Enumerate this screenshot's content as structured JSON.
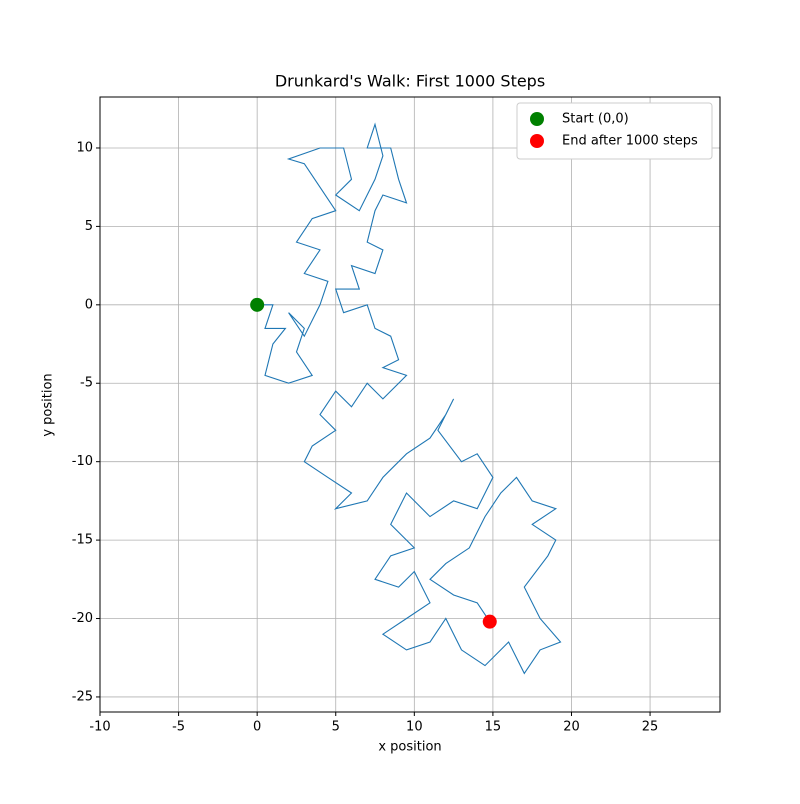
{
  "chart_data": {
    "type": "line",
    "title": "Drunkard's Walk: First 1000 Steps",
    "x_label": "x position",
    "y_label": "y position",
    "xlim": [
      -10,
      29.45
    ],
    "ylim": [
      -25.96,
      13.25
    ],
    "xticks": [
      -10,
      -5,
      0,
      5,
      10,
      15,
      20,
      25
    ],
    "yticks": [
      -25,
      -20,
      -15,
      -10,
      -5,
      0,
      5,
      10
    ],
    "grid": true,
    "legend_position": "upper right",
    "series": [
      {
        "color": "#1f77b4",
        "x": [
          0,
          1,
          0.5,
          1.8,
          1,
          0.5,
          2,
          3.5,
          2.5,
          3,
          2,
          3,
          4,
          4.5,
          3,
          4,
          2.5,
          3.5,
          5,
          4,
          3,
          2,
          4,
          5.5,
          6,
          5,
          6.5,
          7.5,
          8,
          7.5,
          7,
          8.5,
          9,
          9.5,
          8,
          7.5,
          7,
          8,
          7.5,
          6,
          6.5,
          5,
          5.5,
          7,
          7.5,
          8.5,
          9,
          8,
          9.5,
          8,
          7,
          6,
          5,
          4,
          5,
          3.5,
          3,
          4.5,
          6,
          5,
          7,
          8,
          9.5,
          11,
          12,
          12.5,
          11.5,
          13,
          14,
          15,
          14,
          12.5,
          11,
          9.5,
          8.5,
          10,
          8.5,
          7.5,
          9,
          10,
          11,
          9.5,
          8,
          9.5,
          11,
          12,
          13,
          14.5,
          16,
          17,
          18,
          19.3,
          18,
          17,
          18.5,
          19,
          17.5,
          19,
          17.5,
          16.5,
          15.5,
          14.5,
          13.5,
          12,
          11,
          12.5,
          14,
          14.8
        ],
        "y": [
          0,
          0,
          -1.5,
          -1.5,
          -2.5,
          -4.5,
          -5,
          -4.5,
          -3,
          -1.5,
          -0.5,
          -2,
          0,
          1.5,
          2,
          3.5,
          4,
          5.5,
          6,
          7.5,
          9,
          9.3,
          10,
          10,
          8,
          7,
          6,
          8,
          9.5,
          11.5,
          10,
          10,
          8,
          6.5,
          7,
          6,
          4,
          3.5,
          2,
          2.5,
          1,
          1,
          -0.5,
          0,
          -1.5,
          -2,
          -3.5,
          -4,
          -4.5,
          -6,
          -5,
          -6.5,
          -5.5,
          -7,
          -8,
          -9,
          -10,
          -11,
          -12,
          -13,
          -12.5,
          -11,
          -9.5,
          -8.5,
          -7,
          -6,
          -8,
          -10,
          -9.5,
          -11,
          -13,
          -12.5,
          -13.5,
          -12,
          -14,
          -15.5,
          -16,
          -17.5,
          -18,
          -17,
          -19,
          -20,
          -21,
          -22,
          -21.5,
          -20,
          -22,
          -23,
          -21.5,
          -23.5,
          -22,
          -21.5,
          -20,
          -18,
          -16,
          -15,
          -14,
          -13,
          -12.5,
          -11,
          -12,
          -13.5,
          -15.5,
          -16.5,
          -17.5,
          -18.5,
          -19,
          -20.2
        ]
      }
    ],
    "markers": [
      {
        "name": "Start (0,0)",
        "color": "#008000",
        "x": 0,
        "y": 0
      },
      {
        "name": "End after 1000 steps",
        "color": "#ff0000",
        "x": 14.8,
        "y": -20.2
      }
    ]
  }
}
